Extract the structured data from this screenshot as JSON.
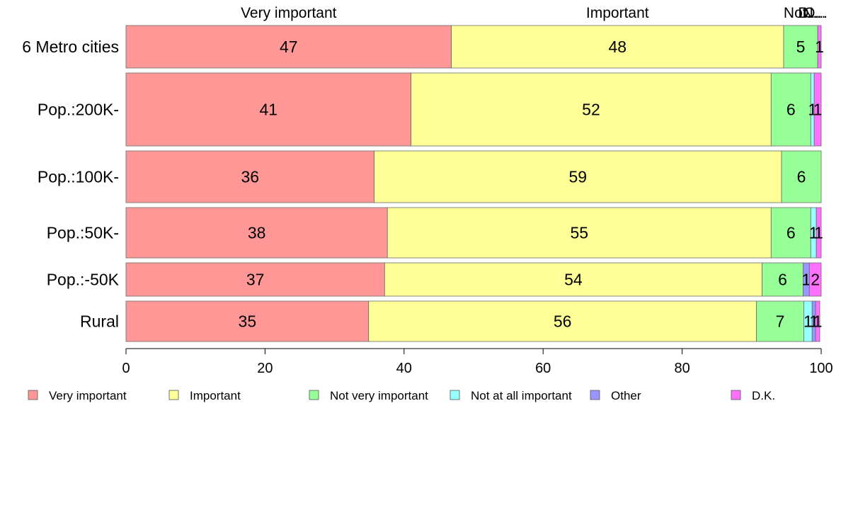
{
  "chart_data": {
    "type": "bar",
    "orientation": "horizontal",
    "stacked": true,
    "categories": [
      "6 Metro cities",
      "Pop.:200K-",
      "Pop.:100K-",
      "Pop.:50K-",
      "Pop.:-50K",
      "Rural"
    ],
    "series": [
      {
        "name": "Very important",
        "color": "#FF9797",
        "values": [
          46.8,
          41.0,
          35.7,
          37.6,
          37.2,
          34.9
        ],
        "labels": [
          "47",
          "41",
          "36",
          "38",
          "37",
          "35"
        ]
      },
      {
        "name": "Important",
        "color": "#FFFF97",
        "values": [
          47.8,
          51.8,
          58.6,
          55.2,
          54.3,
          55.8
        ],
        "labels": [
          "48",
          "52",
          "59",
          "55",
          "54",
          "56"
        ]
      },
      {
        "name": "Not very important",
        "color": "#97FF97",
        "values": [
          4.9,
          5.7,
          5.7,
          5.7,
          5.9,
          6.8
        ],
        "labels": [
          "5",
          "6",
          "6",
          "6",
          "6",
          "7"
        ]
      },
      {
        "name": "Not at all important",
        "color": "#97FFFF",
        "values": [
          0.0,
          0.5,
          0.0,
          0.8,
          0.0,
          1.2
        ],
        "labels": [
          "",
          "1",
          "",
          "1",
          "",
          "1"
        ]
      },
      {
        "name": "Other",
        "color": "#9797FF",
        "values": [
          0.0,
          0.0,
          0.0,
          0.0,
          0.9,
          0.5
        ],
        "labels": [
          "",
          "",
          "",
          "",
          "1",
          "1"
        ]
      },
      {
        "name": "D.K.",
        "color": "#FF70FF",
        "values": [
          0.5,
          1.0,
          0.0,
          0.7,
          1.7,
          0.6
        ],
        "labels": [
          "1",
          "1",
          "",
          "1",
          "2",
          "1"
        ]
      }
    ],
    "top_labels": [
      "Very important",
      "Important",
      "Not...",
      "N...",
      "O...",
      "D..."
    ],
    "x_ticks": [
      0,
      20,
      40,
      60,
      80,
      100
    ],
    "xlim": [
      0,
      100
    ],
    "legend_position": "bottom",
    "grid": false,
    "title": "",
    "xlabel": "",
    "ylabel": ""
  }
}
